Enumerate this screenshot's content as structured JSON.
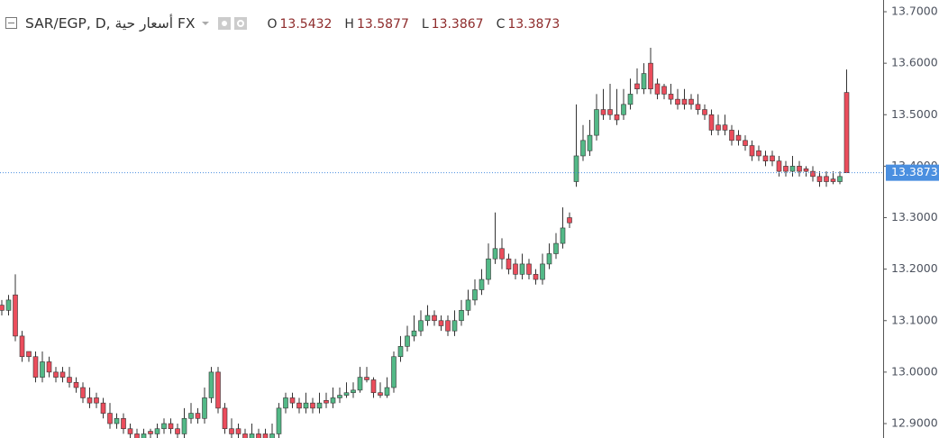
{
  "chart_data": {
    "type": "candlestick",
    "title": "SAR/EGP, D, أسعار حية FX",
    "ohlc_legend": [
      {
        "label": "O",
        "value": 13.5432
      },
      {
        "label": "H",
        "value": 13.5877
      },
      {
        "label": "L",
        "value": 13.3867
      },
      {
        "label": "C",
        "value": 13.3873
      }
    ],
    "last_price": 13.3873,
    "up_color": "#53b987",
    "down_color": "#eb4d5c",
    "last_price_color": "#4a8fe0",
    "ylim": [
      12.872,
      13.7228
    ],
    "yticks": [
      {
        "value": 12.9,
        "label": "12.9000"
      },
      {
        "value": 13.0,
        "label": "13.0000"
      },
      {
        "value": 13.1,
        "label": "13.1000"
      },
      {
        "value": 13.2,
        "label": "13.2000"
      },
      {
        "value": 13.3,
        "label": "13.3000"
      },
      {
        "value": 13.4,
        "label": "13.4000"
      },
      {
        "value": 13.5,
        "label": "13.5000"
      },
      {
        "value": 13.6,
        "label": "13.6000"
      },
      {
        "value": 13.7,
        "label": "13.7000"
      }
    ],
    "ohlc": [
      [
        13.13,
        13.14,
        13.11,
        13.12
      ],
      [
        13.12,
        13.15,
        13.11,
        13.14
      ],
      [
        13.15,
        13.19,
        13.06,
        13.07
      ],
      [
        13.07,
        13.08,
        13.02,
        13.03
      ],
      [
        13.04,
        13.04,
        13.02,
        13.03
      ],
      [
        13.03,
        13.04,
        12.98,
        12.99
      ],
      [
        12.99,
        13.04,
        12.98,
        13.02
      ],
      [
        13.02,
        13.03,
        12.99,
        13.0
      ],
      [
        13.0,
        13.01,
        12.98,
        12.99
      ],
      [
        13.0,
        13.01,
        12.98,
        12.99
      ],
      [
        12.99,
        13.01,
        12.97,
        12.98
      ],
      [
        12.98,
        12.99,
        12.96,
        12.97
      ],
      [
        12.97,
        12.98,
        12.94,
        12.95
      ],
      [
        12.95,
        12.97,
        12.93,
        12.94
      ],
      [
        12.95,
        12.96,
        12.93,
        12.94
      ],
      [
        12.94,
        12.95,
        12.91,
        12.92
      ],
      [
        12.92,
        12.94,
        12.89,
        12.9
      ],
      [
        12.9,
        12.92,
        12.89,
        12.91
      ],
      [
        12.91,
        12.92,
        12.88,
        12.89
      ],
      [
        12.89,
        12.9,
        12.87,
        12.88
      ],
      [
        12.88,
        12.89,
        12.86,
        12.87
      ],
      [
        12.87,
        12.89,
        12.86,
        12.88
      ],
      [
        12.885,
        12.89,
        12.87,
        12.88
      ],
      [
        12.88,
        12.9,
        12.87,
        12.89
      ],
      [
        12.89,
        12.91,
        12.88,
        12.9
      ],
      [
        12.9,
        12.91,
        12.88,
        12.89
      ],
      [
        12.89,
        12.9,
        12.87,
        12.88
      ],
      [
        12.88,
        12.93,
        12.87,
        12.91
      ],
      [
        12.91,
        12.94,
        12.9,
        12.92
      ],
      [
        12.92,
        12.93,
        12.9,
        12.91
      ],
      [
        12.91,
        12.97,
        12.9,
        12.95
      ],
      [
        12.95,
        13.01,
        12.94,
        13.0
      ],
      [
        13.0,
        13.01,
        12.92,
        12.93
      ],
      [
        12.93,
        12.94,
        12.88,
        12.89
      ],
      [
        12.89,
        12.91,
        12.87,
        12.88
      ],
      [
        12.89,
        12.9,
        12.87,
        12.88
      ],
      [
        12.88,
        12.89,
        12.86,
        12.87
      ],
      [
        12.87,
        12.9,
        12.86,
        12.88
      ],
      [
        12.88,
        12.89,
        12.86,
        12.87
      ],
      [
        12.88,
        12.89,
        12.86,
        12.87
      ],
      [
        12.87,
        12.9,
        12.86,
        12.88
      ],
      [
        12.88,
        12.94,
        12.87,
        12.93
      ],
      [
        12.93,
        12.96,
        12.92,
        12.95
      ],
      [
        12.95,
        12.96,
        12.93,
        12.94
      ],
      [
        12.94,
        12.95,
        12.92,
        12.93
      ],
      [
        12.93,
        12.96,
        12.92,
        12.94
      ],
      [
        12.94,
        12.95,
        12.92,
        12.93
      ],
      [
        12.93,
        12.96,
        12.92,
        12.94
      ],
      [
        12.945,
        12.96,
        12.93,
        12.94
      ],
      [
        12.94,
        12.97,
        12.93,
        12.95
      ],
      [
        12.95,
        12.97,
        12.94,
        12.955
      ],
      [
        12.955,
        12.98,
        12.95,
        12.96
      ],
      [
        12.96,
        12.98,
        12.95,
        12.965
      ],
      [
        12.965,
        13.01,
        12.96,
        12.99
      ],
      [
        12.99,
        13.01,
        12.98,
        12.985
      ],
      [
        12.985,
        12.99,
        12.95,
        12.96
      ],
      [
        12.96,
        12.98,
        12.95,
        12.955
      ],
      [
        12.955,
        12.99,
        12.95,
        12.97
      ],
      [
        12.97,
        13.04,
        12.96,
        13.03
      ],
      [
        13.03,
        13.07,
        13.02,
        13.05
      ],
      [
        13.05,
        13.09,
        13.04,
        13.07
      ],
      [
        13.07,
        13.11,
        13.06,
        13.08
      ],
      [
        13.08,
        13.12,
        13.07,
        13.1
      ],
      [
        13.1,
        13.13,
        13.09,
        13.11
      ],
      [
        13.11,
        13.12,
        13.09,
        13.1
      ],
      [
        13.1,
        13.11,
        13.08,
        13.09
      ],
      [
        13.1,
        13.11,
        13.07,
        13.08
      ],
      [
        13.08,
        13.12,
        13.07,
        13.1
      ],
      [
        13.1,
        13.14,
        13.09,
        13.12
      ],
      [
        13.12,
        13.16,
        13.11,
        13.14
      ],
      [
        13.14,
        13.18,
        13.13,
        13.16
      ],
      [
        13.16,
        13.2,
        13.15,
        13.18
      ],
      [
        13.18,
        13.25,
        13.17,
        13.22
      ],
      [
        13.22,
        13.31,
        13.21,
        13.24
      ],
      [
        13.24,
        13.26,
        13.2,
        13.22
      ],
      [
        13.22,
        13.23,
        13.19,
        13.2
      ],
      [
        13.21,
        13.22,
        13.18,
        13.19
      ],
      [
        13.19,
        13.23,
        13.18,
        13.21
      ],
      [
        13.21,
        13.22,
        13.18,
        13.19
      ],
      [
        13.19,
        13.2,
        13.17,
        13.18
      ],
      [
        13.18,
        13.23,
        13.17,
        13.21
      ],
      [
        13.21,
        13.25,
        13.2,
        13.23
      ],
      [
        13.23,
        13.27,
        13.22,
        13.25
      ],
      [
        13.25,
        13.32,
        13.24,
        13.28
      ],
      [
        13.3,
        13.31,
        13.28,
        13.29
      ],
      [
        13.37,
        13.52,
        13.36,
        13.42
      ],
      [
        13.42,
        13.48,
        13.41,
        13.45
      ],
      [
        13.43,
        13.49,
        13.42,
        13.46
      ],
      [
        13.46,
        13.54,
        13.45,
        13.51
      ],
      [
        13.51,
        13.55,
        13.49,
        13.5
      ],
      [
        13.51,
        13.56,
        13.49,
        13.5
      ],
      [
        13.5,
        13.55,
        13.48,
        13.49
      ],
      [
        13.5,
        13.55,
        13.49,
        13.52
      ],
      [
        13.52,
        13.57,
        13.51,
        13.54
      ],
      [
        13.56,
        13.59,
        13.54,
        13.55
      ],
      [
        13.55,
        13.6,
        13.54,
        13.58
      ],
      [
        13.6,
        13.63,
        13.54,
        13.55
      ],
      [
        13.56,
        13.57,
        13.53,
        13.54
      ],
      [
        13.555,
        13.56,
        13.53,
        13.54
      ],
      [
        13.54,
        13.56,
        13.52,
        13.53
      ],
      [
        13.53,
        13.55,
        13.51,
        13.52
      ],
      [
        13.53,
        13.55,
        13.51,
        13.52
      ],
      [
        13.53,
        13.54,
        13.51,
        13.52
      ],
      [
        13.52,
        13.54,
        13.5,
        13.51
      ],
      [
        13.51,
        13.52,
        13.49,
        13.5
      ],
      [
        13.5,
        13.51,
        13.46,
        13.47
      ],
      [
        13.48,
        13.5,
        13.46,
        13.47
      ],
      [
        13.48,
        13.5,
        13.46,
        13.47
      ],
      [
        13.47,
        13.48,
        13.44,
        13.45
      ],
      [
        13.46,
        13.47,
        13.44,
        13.45
      ],
      [
        13.45,
        13.46,
        13.43,
        13.44
      ],
      [
        13.44,
        13.45,
        13.41,
        13.42
      ],
      [
        13.43,
        13.44,
        13.41,
        13.42
      ],
      [
        13.42,
        13.43,
        13.4,
        13.41
      ],
      [
        13.42,
        13.43,
        13.4,
        13.41
      ],
      [
        13.41,
        13.42,
        13.38,
        13.39
      ],
      [
        13.4,
        13.41,
        13.38,
        13.39
      ],
      [
        13.39,
        13.42,
        13.38,
        13.4
      ],
      [
        13.4,
        13.41,
        13.38,
        13.39
      ],
      [
        13.395,
        13.4,
        13.38,
        13.39
      ],
      [
        13.39,
        13.4,
        13.37,
        13.38
      ],
      [
        13.38,
        13.39,
        13.36,
        13.37
      ],
      [
        13.38,
        13.39,
        13.36,
        13.37
      ],
      [
        13.375,
        13.39,
        13.365,
        13.37
      ],
      [
        13.37,
        13.39,
        13.365,
        13.38
      ],
      [
        13.5432,
        13.5877,
        13.3867,
        13.3873
      ]
    ]
  }
}
